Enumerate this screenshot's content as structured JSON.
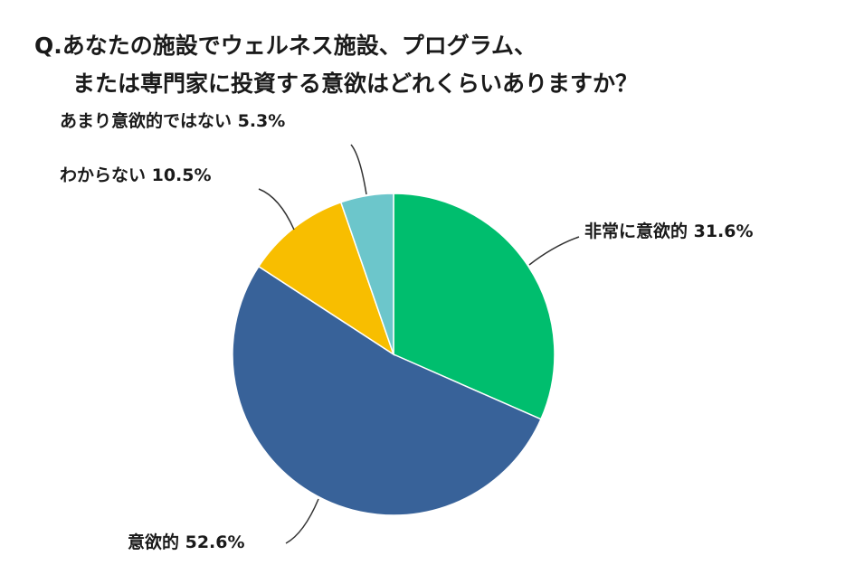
{
  "title": {
    "line1": "Q.あなたの施設でウェルネス施設、プログラム、",
    "line2": "または専門家に投資する意欲はどれくらいありますか？"
  },
  "chart_data": {
    "type": "pie",
    "start_angle": "top",
    "direction": "clockwise",
    "slices": [
      {
        "label": "非常に意欲的",
        "value": 31.6,
        "display": "非常に意欲的 31.6%",
        "color": "#00BE6E"
      },
      {
        "label": "意欲的",
        "value": 52.6,
        "display": "意欲的 52.6%",
        "color": "#386299"
      },
      {
        "label": "わからない",
        "value": 10.5,
        "display": "わからない 10.5%",
        "color": "#F8BE00"
      },
      {
        "label": "あまり意欲的ではない",
        "value": 5.3,
        "display": "あまり意欲的ではない 5.3%",
        "color": "#6CC6CB"
      }
    ]
  }
}
